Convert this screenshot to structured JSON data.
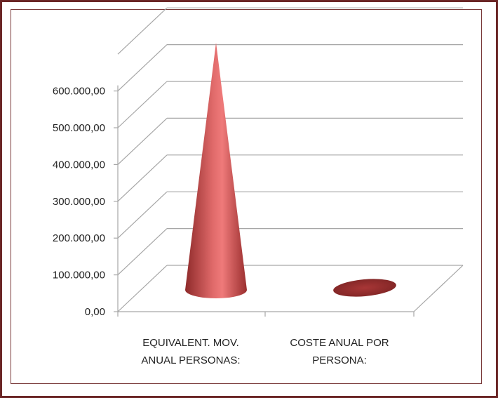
{
  "chart_data": {
    "type": "bar",
    "bar_shape": "cone-3d",
    "categories": [
      [
        "EQUIVALENT. MOV.",
        "ANUAL PERSONAS:"
      ],
      [
        "COSTE ANUAL POR",
        "PERSONA:"
      ]
    ],
    "values": [
      600000,
      0
    ],
    "ylim": [
      0,
      700000
    ],
    "yticks": [
      "0,00",
      "100.000,00",
      "200.000,00",
      "300.000,00",
      "400.000,00",
      "500.000,00",
      "600.000,00"
    ],
    "ytick_values": [
      0,
      100000,
      200000,
      300000,
      400000,
      500000,
      600000
    ],
    "grid": true,
    "legend": "none",
    "colors": {
      "series": "#b83b3b",
      "frame": "#6b2626",
      "grid": "#a6a6a6"
    }
  }
}
